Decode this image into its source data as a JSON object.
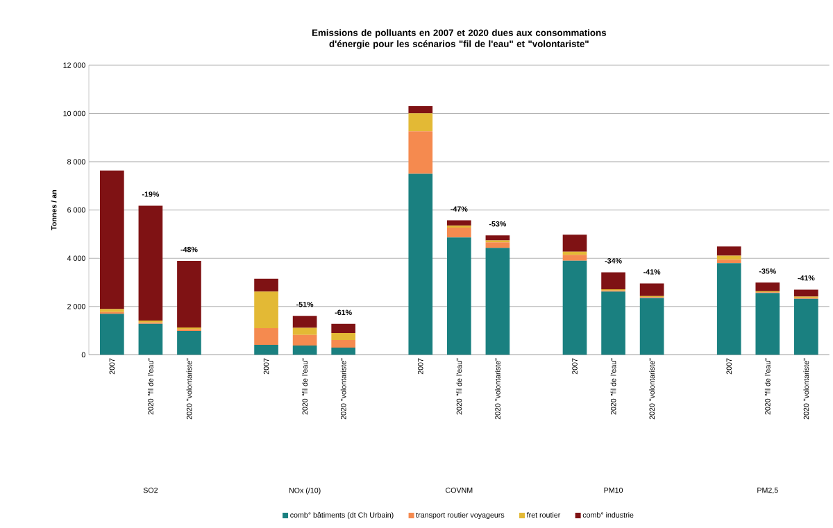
{
  "chart_data": {
    "type": "bar",
    "stacked": true,
    "title": "Emissions de polluants en 2007 et 2020 dues aux consommations d'énergie pour les scénarios \"fil de l'eau\" et \"volontariste\"",
    "ylabel": "Tonnes / an",
    "categories": [
      "2007",
      "2020 \"fil de l'eau\"",
      "2020 \"volontariste\"",
      null,
      "2007",
      "2020 \"fil de l'eau\"",
      "2020 \"volontariste\"",
      null,
      "2007",
      "2020 \"fil de l'eau\"",
      "2020 \"volontariste\"",
      null,
      "2007",
      "2020 \"fil de l'eau\"",
      "2020 \"volontariste\"",
      null,
      "2007",
      "2020 \"fil de l'eau\"",
      "2020 \"volontariste\""
    ],
    "series": [
      {
        "name": "comb° bâtiments (dt Ch Urbain)",
        "color": "#1a8080",
        "values": [
          1700,
          1280,
          990,
          null,
          410,
          385,
          300,
          null,
          7500,
          4860,
          4430,
          null,
          3900,
          2620,
          2350,
          null,
          3800,
          2560,
          2320
        ]
      },
      {
        "name": "transport routier voyageurs",
        "color": "#f58a4f",
        "values": [
          70,
          60,
          60,
          null,
          690,
          440,
          310,
          null,
          1760,
          410,
          230,
          null,
          240,
          40,
          40,
          null,
          140,
          30,
          40
        ]
      },
      {
        "name": "fret routier",
        "color": "#e3b935",
        "values": [
          120,
          80,
          80,
          null,
          1520,
          290,
          290,
          null,
          750,
          80,
          80,
          null,
          135,
          50,
          40,
          null,
          170,
          40,
          50
        ]
      },
      {
        "name": "comb° industrie",
        "color": "#7f1214",
        "values": [
          5750,
          4760,
          2760,
          null,
          530,
          500,
          380,
          null,
          290,
          220,
          210,
          null,
          700,
          710,
          530,
          null,
          380,
          360,
          290
        ]
      }
    ],
    "ylim": [
      0,
      12000
    ],
    "yticks": [
      0,
      {
        "value": 2000,
        "label": "2 000"
      },
      {
        "value": 4000,
        "label": "4 000"
      },
      {
        "value": 6000,
        "label": "6 000"
      },
      {
        "value": 8000,
        "label": "8 000"
      },
      {
        "value": 10000,
        "label": "10 000"
      },
      {
        "value": 12000,
        "label": "12 000"
      }
    ],
    "grid": "y",
    "legend": "bottom",
    "annotations": [
      "SO2",
      "NOx (/10)",
      "COVNM",
      "PM10",
      "PM2,5",
      {
        "text": "-19%",
        "y": 6180
      },
      {
        "text": "-48%",
        "y": 3890
      },
      {
        "text": "-51%",
        "y": 1615
      },
      {
        "text": "-61%",
        "y": 1280
      },
      {
        "text": "-47%",
        "y": 5570
      },
      {
        "text": "-53%",
        "y": 4950
      },
      {
        "text": "-34%",
        "y": 3420
      },
      {
        "text": "-41%",
        "y": 2960
      },
      {
        "text": "-35%",
        "y": 2990
      },
      {
        "text": "-41%",
        "y": 2710
      }
    ]
  }
}
